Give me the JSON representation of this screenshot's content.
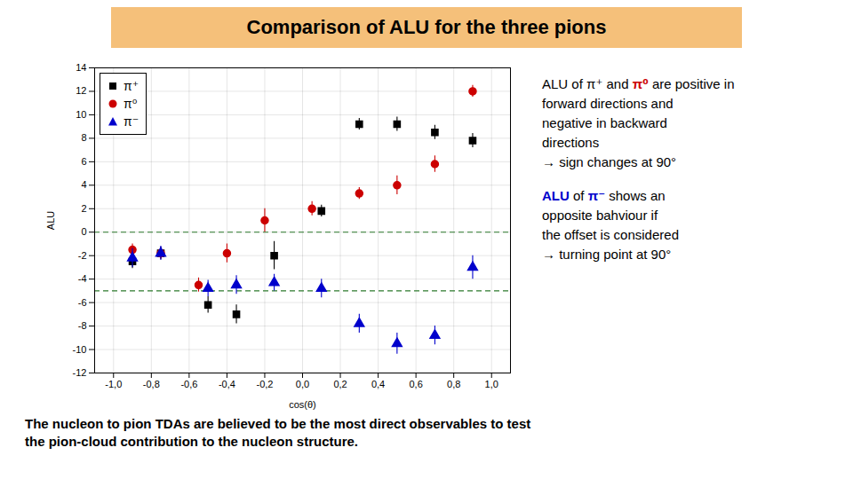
{
  "chart_data": {
    "type": "scatter",
    "title": "Comparison of ALU for the three pions",
    "title_background": "#f5c07a",
    "xlabel": "cos(θ)",
    "ylabel": "ALU",
    "xlim": [
      -1.1,
      1.1
    ],
    "xticks": [
      {
        "value": -1.0,
        "label": "-1,0"
      },
      {
        "value": -0.8,
        "label": "-0,8"
      },
      {
        "value": -0.6,
        "label": "-0,6"
      },
      {
        "value": -0.4,
        "label": "-0,4"
      },
      {
        "value": -0.2,
        "label": "-0,2"
      },
      {
        "value": 0.0,
        "label": "0,0"
      },
      {
        "value": 0.2,
        "label": "0,2"
      },
      {
        "value": 0.4,
        "label": "0,4"
      },
      {
        "value": 0.6,
        "label": "0,6"
      },
      {
        "value": 0.8,
        "label": "0,8"
      },
      {
        "value": 1.0,
        "label": "1,0"
      }
    ],
    "ylim": [
      -12,
      14
    ],
    "yticks": [
      -12,
      -10,
      -8,
      -6,
      -4,
      -2,
      0,
      2,
      4,
      6,
      8,
      10,
      12,
      14
    ],
    "grid": true,
    "legend": "upper left",
    "reference_lines": [
      {
        "y": 0,
        "color": "#2d7a2d",
        "line_style": "dashed"
      },
      {
        "y": -5.0,
        "color": "#2d7a2d",
        "line_style": "dashed"
      }
    ],
    "series": [
      {
        "name": "π⁺",
        "color": "#000000",
        "marker": "square",
        "x": [
          -0.9,
          -0.75,
          -0.5,
          -0.35,
          -0.15,
          0.1,
          0.3,
          0.5,
          0.7,
          0.9
        ],
        "values": [
          -2.5,
          -1.8,
          -6.2,
          -7.0,
          -2.0,
          1.8,
          9.2,
          9.2,
          8.5,
          7.8
        ],
        "errors": [
          0.6,
          0.5,
          0.7,
          0.8,
          1.2,
          0.5,
          0.5,
          0.6,
          0.6,
          0.6
        ]
      },
      {
        "name": "π⁰",
        "color": "#cc0000",
        "marker": "circle",
        "x": [
          -0.9,
          -0.75,
          -0.55,
          -0.4,
          -0.2,
          0.05,
          0.3,
          0.5,
          0.7,
          0.9
        ],
        "values": [
          -1.5,
          -1.8,
          -4.5,
          -1.8,
          1.0,
          2.0,
          3.3,
          4.0,
          5.8,
          12.0
        ],
        "errors": [
          0.5,
          0.5,
          0.6,
          0.8,
          1.0,
          0.6,
          0.5,
          0.8,
          0.7,
          0.5
        ]
      },
      {
        "name": "π⁻",
        "color": "#0000cc",
        "marker": "triangle",
        "x": [
          -0.9,
          -0.75,
          -0.5,
          -0.35,
          -0.15,
          0.1,
          0.3,
          0.5,
          0.7,
          0.9
        ],
        "values": [
          -2.2,
          -1.8,
          -4.8,
          -4.5,
          -4.3,
          -4.8,
          -7.8,
          -9.5,
          -8.8,
          -3.0
        ],
        "errors": [
          0.8,
          0.6,
          0.7,
          0.8,
          0.7,
          0.8,
          0.8,
          0.9,
          0.8,
          1.0
        ]
      }
    ],
    "annotations": [
      [
        [
          {
            "text": "ALU"
          },
          {
            "text": " of "
          },
          {
            "text": "π⁺"
          },
          {
            "text": " and "
          },
          {
            "text": "π⁰",
            "color": "#cc0000"
          },
          {
            "text": " are positive in"
          }
        ],
        [
          {
            "text": "forward directions and"
          }
        ],
        [
          {
            "text": "negative in backward"
          }
        ],
        [
          {
            "text": "directions"
          }
        ],
        [
          {
            "text": "→ sign changes at 90°"
          }
        ]
      ],
      [
        [
          {
            "text": "ALU",
            "color": "#0000cc"
          },
          {
            "text": " of "
          },
          {
            "text": "π⁻",
            "color": "#0000cc"
          },
          {
            "text": " shows an"
          }
        ],
        [
          {
            "text": "opposite bahviour if"
          }
        ],
        [
          {
            "text": "the offset is considered"
          }
        ],
        [
          {
            "text": "→ turning point at 90°"
          }
        ]
      ]
    ],
    "caption": [
      "The nucleon to pion TDAs are believed to be the most direct observables to test",
      "the pion-cloud contribution to the nucleon structure."
    ]
  }
}
